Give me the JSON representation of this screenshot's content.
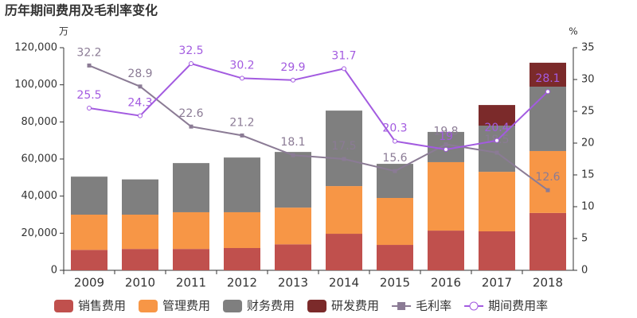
{
  "chart_data": {
    "type": "bar",
    "title": "历年期间费用及毛利率变化",
    "y_unit": "万",
    "y2_unit": "%",
    "categories": [
      "2009",
      "2010",
      "2011",
      "2012",
      "2013",
      "2014",
      "2015",
      "2016",
      "2017",
      "2018"
    ],
    "series": [
      {
        "name": "销售费用",
        "color": "#c0504d",
        "values": [
          11000,
          11500,
          11500,
          12000,
          14000,
          19700,
          13700,
          21400,
          21000,
          30900
        ]
      },
      {
        "name": "管理费用",
        "color": "#f79646",
        "values": [
          19000,
          18500,
          19800,
          19300,
          19800,
          25700,
          25300,
          36900,
          32100,
          33400
        ]
      },
      {
        "name": "财务费用",
        "color": "#7f7f7f",
        "values": [
          20500,
          19000,
          26500,
          29500,
          30000,
          40700,
          18400,
          16300,
          24900,
          34700
        ]
      },
      {
        "name": "研发费用",
        "color": "#7b2a2a",
        "values": [
          0,
          0,
          0,
          0,
          0,
          0,
          0,
          0,
          11100,
          12900
        ]
      },
      {
        "name": "毛利率",
        "color": "#8b7b95",
        "type": "line",
        "axis": "y2",
        "marker": "square",
        "values": [
          32.2,
          28.9,
          22.6,
          21.2,
          18.1,
          17.5,
          15.6,
          19.8,
          18.5,
          12.6
        ]
      },
      {
        "name": "期间费用率",
        "color": "#a35be0",
        "type": "line",
        "axis": "y2",
        "marker": "circle",
        "values": [
          25.5,
          24.3,
          32.5,
          30.2,
          29.9,
          31.7,
          20.3,
          19,
          20.4,
          28.1
        ]
      }
    ],
    "ylim": [
      0,
      120000
    ],
    "yticks": [
      0,
      {
        "value": 20000,
        "label": "20,000"
      },
      {
        "value": 40000,
        "label": "40,000"
      },
      {
        "value": 60000,
        "label": "60,000"
      },
      {
        "value": 80000,
        "label": "80,000"
      },
      {
        "value": 100000,
        "label": "100,000"
      },
      {
        "value": 120000,
        "label": "120,000"
      }
    ],
    "y2lim": [
      0,
      35
    ],
    "y2ticks": [
      0,
      5,
      10,
      15,
      20,
      25,
      30,
      35
    ]
  }
}
